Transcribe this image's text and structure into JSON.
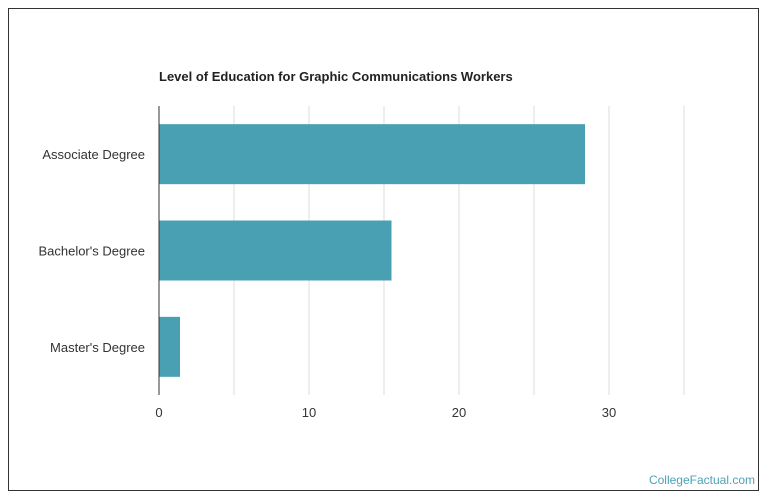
{
  "chart_data": {
    "type": "bar",
    "orientation": "horizontal",
    "title": "Level of Education for Graphic Communications Workers",
    "categories": [
      "Associate Degree",
      "Bachelor's Degree",
      "Master's Degree"
    ],
    "values": [
      28.4,
      15.5,
      1.4
    ],
    "xlim": [
      0,
      35
    ],
    "xticks": [
      0,
      10,
      20,
      30
    ],
    "grid": true,
    "bar_color": "#4aa0b3",
    "grid_color": "#dddddd"
  },
  "branding": {
    "text": "CollegeFactual.com",
    "color": "#4aa3b4"
  }
}
